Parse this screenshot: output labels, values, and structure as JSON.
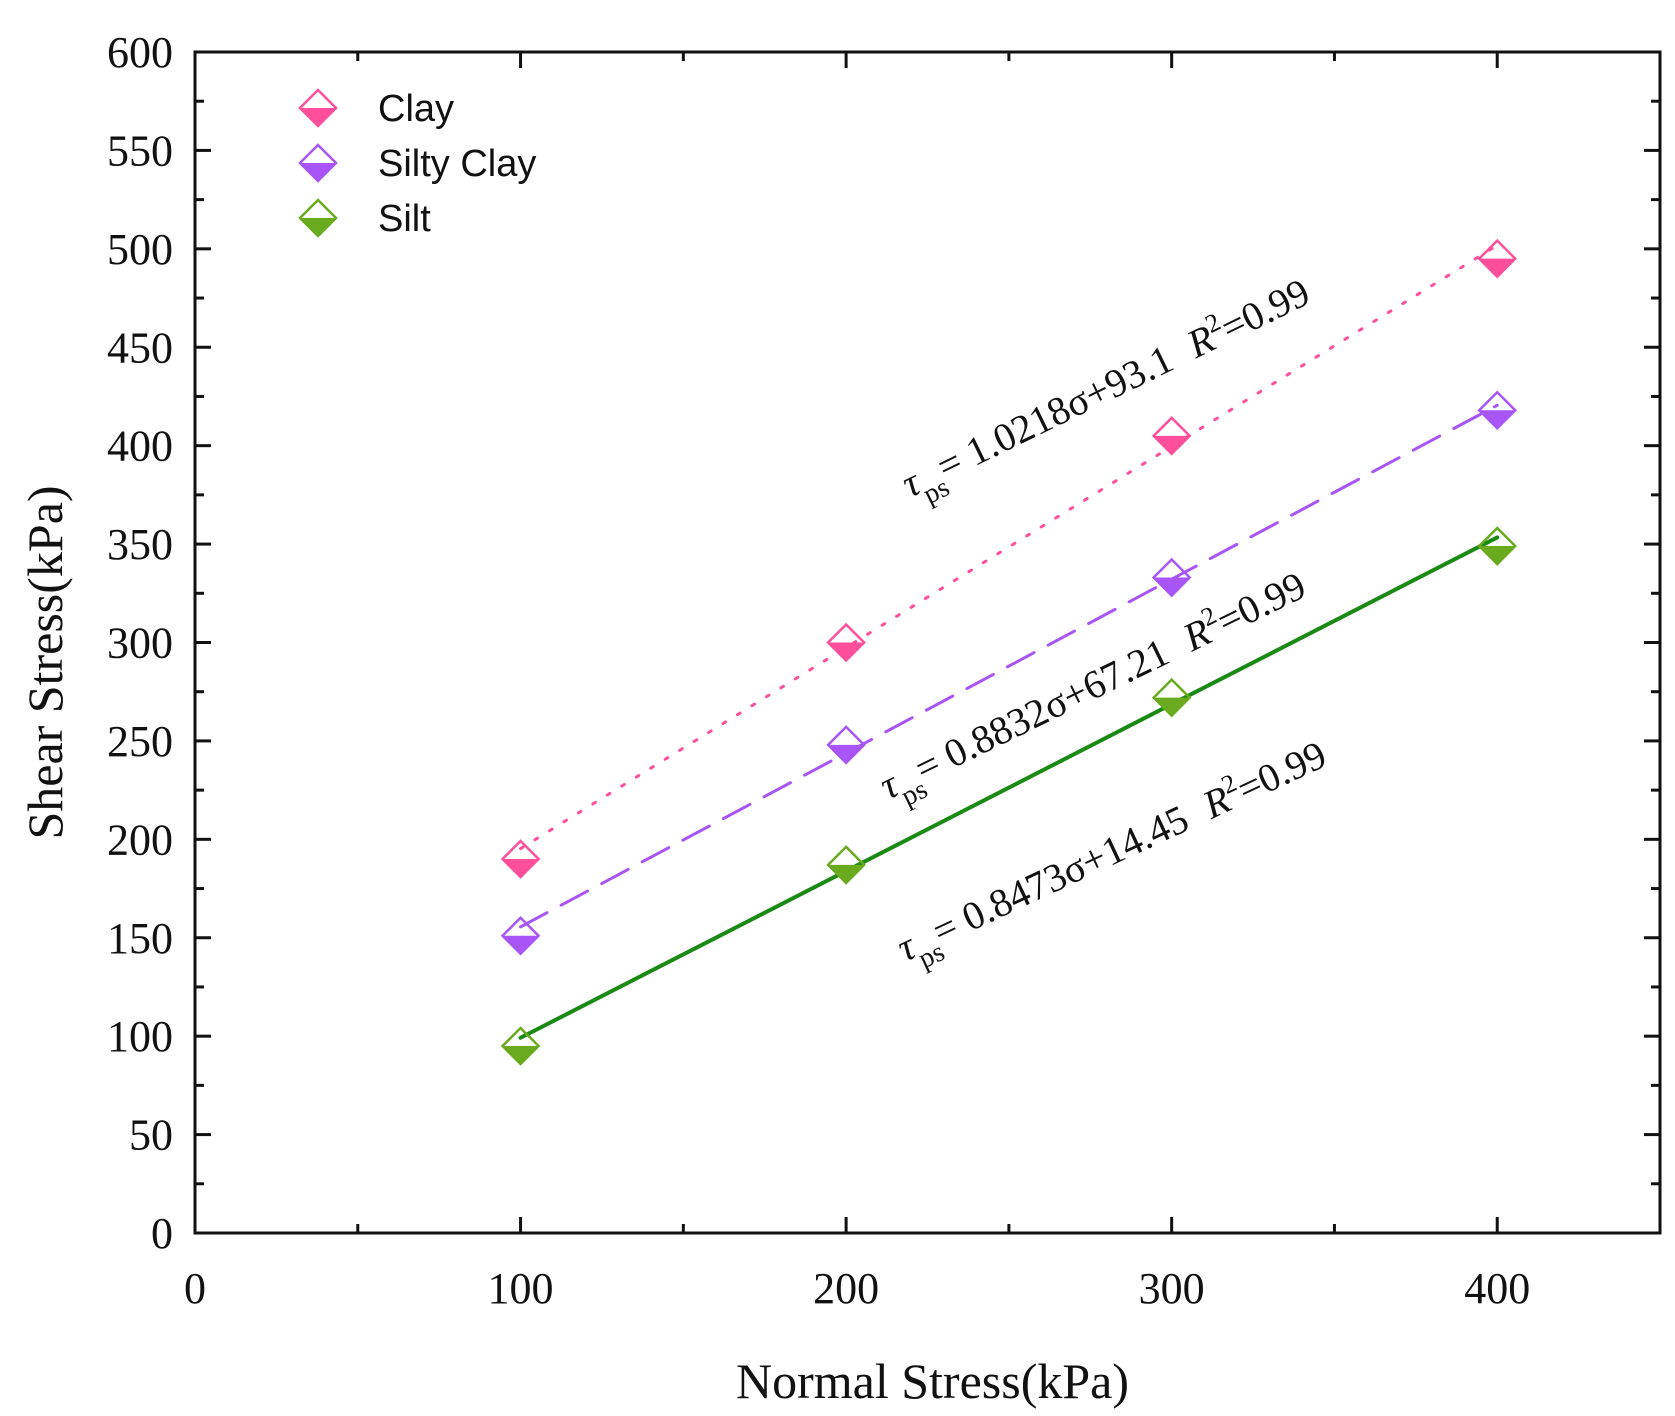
{
  "chart_data": {
    "type": "scatter",
    "xlabel": "Normal Stress(kPa)",
    "ylabel": "Shear Stress(kPa)",
    "xlim": [
      0,
      450
    ],
    "ylim": [
      0,
      600
    ],
    "x_ticks": [
      "0",
      "100",
      "200",
      "300",
      "400"
    ],
    "x_tick_values": [
      0,
      100,
      200,
      300,
      400
    ],
    "y_ticks": [
      "0",
      "50",
      "100",
      "150",
      "200",
      "250",
      "300",
      "350",
      "400",
      "450",
      "500",
      "550",
      "600"
    ],
    "y_tick_values": [
      0,
      50,
      100,
      150,
      200,
      250,
      300,
      350,
      400,
      450,
      500,
      550,
      600
    ],
    "legend_position": "top-left",
    "series": [
      {
        "name": "Clay",
        "color": "#ff4f9b",
        "line_style": "dotted",
        "x": [
          100,
          200,
          300,
          400
        ],
        "y": [
          190,
          300,
          405,
          495
        ],
        "fit": {
          "slope": 1.0218,
          "intercept": 93.1
        },
        "equation": {
          "lhs": "τ",
          "sub": "ps",
          "rhs": "= 1.0218σ+93.1",
          "r_label": "R",
          "r_sup": "2",
          "r_value": "=0.99"
        }
      },
      {
        "name": "Silty Clay",
        "color": "#a855f7",
        "line_style": "dashed",
        "x": [
          100,
          200,
          300,
          400
        ],
        "y": [
          151,
          248,
          333,
          418
        ],
        "fit": {
          "slope": 0.8832,
          "intercept": 67.21
        },
        "equation": {
          "lhs": "τ",
          "sub": "ps",
          "rhs": "= 0.8832σ+67.21",
          "r_label": "R",
          "r_sup": "2",
          "r_value": "=0.99"
        }
      },
      {
        "name": "Silt",
        "color": "#6aaa1e",
        "line_color": "#1a8a14",
        "line_style": "solid",
        "x": [
          100,
          200,
          300,
          400
        ],
        "y": [
          95,
          187,
          272,
          349
        ],
        "fit": {
          "slope": 0.8473,
          "intercept": 14.45
        },
        "equation": {
          "lhs": "τ",
          "sub": "ps",
          "rhs": "= 0.8473σ+14.45",
          "r_label": "R",
          "r_sup": "2",
          "r_value": "=0.99"
        }
      }
    ]
  }
}
